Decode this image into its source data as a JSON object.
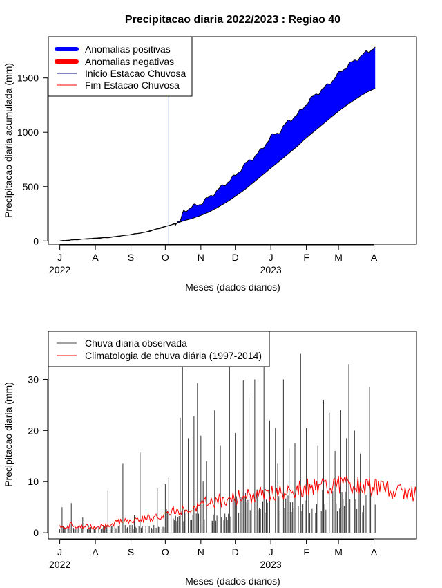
{
  "page": {
    "title": "Precipitacao diaria 2022/2023 : Regiao 40"
  },
  "chart_data": [
    {
      "type": "area",
      "ylabel": "Precipitacao diaria acumulada (mm)",
      "xlabel": "Meses (dados diarios)",
      "x_ticks": [
        "J",
        "A",
        "S",
        "O",
        "N",
        "D",
        "J",
        "F",
        "M",
        "A"
      ],
      "year_labels": [
        "2022",
        "2023"
      ],
      "y_ticks": [
        0,
        500,
        1000,
        1500
      ],
      "ylim": [
        -30,
        1880
      ],
      "xlim_days": [
        -10,
        311
      ],
      "legend": {
        "position": "top-left",
        "items": [
          {
            "label": "Anomalias positivas",
            "color": "#0000ff",
            "style": "thick"
          },
          {
            "label": "Anomalias negativas",
            "color": "#ff0000",
            "style": "thick"
          },
          {
            "label": "Inicio Estacao Chuvosa",
            "color": "#00008b",
            "style": "thin"
          },
          {
            "label": "Fim Estacao Chuvosa",
            "color": "#ff0000",
            "style": "thin"
          }
        ]
      },
      "start_date": "2022-07-01",
      "end_date": "2023-04-02",
      "rainy_season_start": "2022-10-04",
      "colors": {
        "positive": "#0000ff",
        "negative": "#ff0000",
        "start_line": "#6060c0"
      },
      "observed_cumulative": {
        "days": [
          0,
          15,
          31,
          46,
          62,
          75,
          92,
          100,
          105,
          108,
          115,
          123,
          130,
          138,
          146,
          153,
          161,
          168,
          176,
          184,
          191,
          199,
          207,
          214,
          222,
          230,
          238,
          245,
          253,
          260,
          268,
          276,
          280
        ],
        "values": [
          0,
          12,
          22,
          34,
          60,
          80,
          130,
          160,
          175,
          275,
          310,
          345,
          400,
          470,
          540,
          600,
          700,
          760,
          840,
          960,
          1000,
          1100,
          1160,
          1250,
          1340,
          1400,
          1480,
          1560,
          1630,
          1680,
          1740,
          1790,
          1840
        ]
      },
      "climatology_cumulative": {
        "days": [
          0,
          15,
          31,
          46,
          62,
          75,
          92,
          100,
          108,
          115,
          123,
          130,
          138,
          146,
          153,
          161,
          168,
          176,
          184,
          191,
          199,
          207,
          214,
          222,
          230,
          238,
          245,
          253,
          260,
          268,
          276,
          280
        ],
        "values": [
          0,
          14,
          26,
          38,
          58,
          82,
          135,
          155,
          185,
          205,
          235,
          265,
          310,
          360,
          410,
          470,
          530,
          600,
          670,
          730,
          800,
          870,
          940,
          1010,
          1080,
          1150,
          1210,
          1270,
          1320,
          1370,
          1410,
          1420
        ]
      }
    },
    {
      "type": "bar",
      "ylabel": "Precipitacao diaria (mm)",
      "xlabel": "Meses (dados diarios)",
      "x_ticks": [
        "J",
        "A",
        "S",
        "O",
        "N",
        "D",
        "J",
        "F",
        "M",
        "A"
      ],
      "year_labels": [
        "2022",
        "2023"
      ],
      "y_ticks": [
        0,
        10,
        20,
        30
      ],
      "ylim": [
        -1.2,
        39.4
      ],
      "xlim_days": [
        -10,
        311
      ],
      "legend": {
        "position": "top-left",
        "items": [
          {
            "label": "Chuva diaria observada",
            "color": "#444444"
          },
          {
            "label": "Climatologia de chuva diária (1997-2014)",
            "color": "#ff0000"
          }
        ]
      },
      "start_date": "2022-07-01",
      "colors": {
        "observed": "#333333",
        "climatology": "#ff0000"
      },
      "observed_peaks": {
        "days": [
          2,
          10,
          20,
          42,
          55,
          65,
          70,
          85,
          92,
          95,
          105,
          107,
          112,
          117,
          118,
          120,
          123,
          125,
          128,
          135,
          140,
          148,
          153,
          160,
          165,
          170,
          178,
          183,
          188,
          190,
          195,
          200,
          205,
          210,
          215,
          225,
          230,
          235,
          240,
          245,
          250,
          252,
          257,
          262,
          270,
          278,
          280
        ],
        "values": [
          5,
          5.8,
          3,
          8.2,
          13.5,
          3.5,
          15.7,
          8.7,
          9.5,
          10.8,
          22.5,
          33,
          18.5,
          22.8,
          8.5,
          29.3,
          19,
          10,
          14,
          24,
          17,
          34.5,
          19.5,
          29.8,
          26.5,
          30,
          37.3,
          22,
          20.5,
          13.5,
          30,
          16.5,
          17.5,
          35,
          20.5,
          17,
          26,
          23.5,
          16,
          24,
          18.5,
          33,
          20,
          15.5,
          28.5,
          11,
          15.5
        ]
      },
      "climatology_line": {
        "days": [
          0,
          10,
          20,
          31,
          40,
          50,
          60,
          70,
          80,
          92,
          100,
          110,
          120,
          130,
          140,
          150,
          160,
          170,
          180,
          190,
          200,
          210,
          220,
          230,
          240,
          250,
          260,
          270,
          280,
          290,
          300,
          311
        ],
        "values": [
          1.2,
          1.5,
          1.2,
          1.0,
          1.3,
          2.0,
          2.4,
          2.6,
          3.0,
          3.6,
          4.2,
          4.8,
          5.3,
          5.8,
          6.3,
          6.7,
          7.0,
          7.3,
          7.7,
          8.0,
          8.4,
          8.7,
          9.0,
          9.4,
          9.6,
          9.5,
          9.3,
          9.0,
          8.5,
          8.2,
          8.0,
          7.8
        ]
      }
    }
  ]
}
